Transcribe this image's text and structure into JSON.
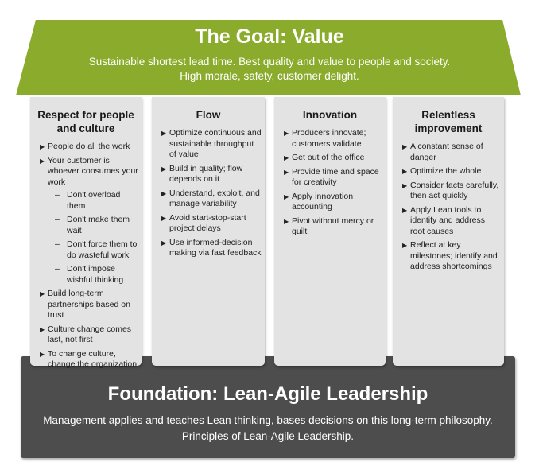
{
  "roof": {
    "title": "The Goal: Value",
    "line1": "Sustainable shortest lead time. Best quality and value to people and society.",
    "line2": "High morale, safety, customer delight.",
    "color": "#8aab2c"
  },
  "pillars": [
    {
      "title": "Respect for people and culture",
      "items": [
        {
          "text": "People do all the work"
        },
        {
          "text": "Your customer is whoever consumes your work",
          "subitems": [
            "Don't overload them",
            "Don't make them wait",
            "Don't force them to do wasteful work",
            "Don't impose wishful thinking"
          ]
        },
        {
          "text": "Build long-term partnerships based on trust"
        },
        {
          "text": "Culture change comes last, not first"
        },
        {
          "text": "To change culture, change the organization"
        }
      ]
    },
    {
      "title": "Flow",
      "items": [
        {
          "text": "Optimize continuous and sustainable throughput of value"
        },
        {
          "text": "Build in quality; flow depends on it"
        },
        {
          "text": "Understand, exploit, and manage variability"
        },
        {
          "text": "Avoid start-stop-start project delays"
        },
        {
          "text": "Use informed-decision making via fast feedback"
        }
      ]
    },
    {
      "title": "Innovation",
      "items": [
        {
          "text": "Producers innovate; customers validate"
        },
        {
          "text": "Get out of the office"
        },
        {
          "text": "Provide time and space for creativity"
        },
        {
          "text": "Apply innovation accounting"
        },
        {
          "text": "Pivot without mercy or guilt"
        }
      ]
    },
    {
      "title": "Relentless improvement",
      "items": [
        {
          "text": "A constant sense of danger"
        },
        {
          "text": "Optimize the whole"
        },
        {
          "text": "Consider facts carefully, then act quickly"
        },
        {
          "text": "Apply Lean tools to identify and address root causes"
        },
        {
          "text": "Reflect at key milestones; identify and address shortcomings"
        }
      ]
    }
  ],
  "foundation": {
    "title": "Foundation: Lean-Agile Leadership",
    "line1": "Management applies and teaches Lean thinking, bases decisions on this long-term philosophy.",
    "line2": "Principles of Lean-Agile Leadership.",
    "color": "#4d4d4d"
  }
}
